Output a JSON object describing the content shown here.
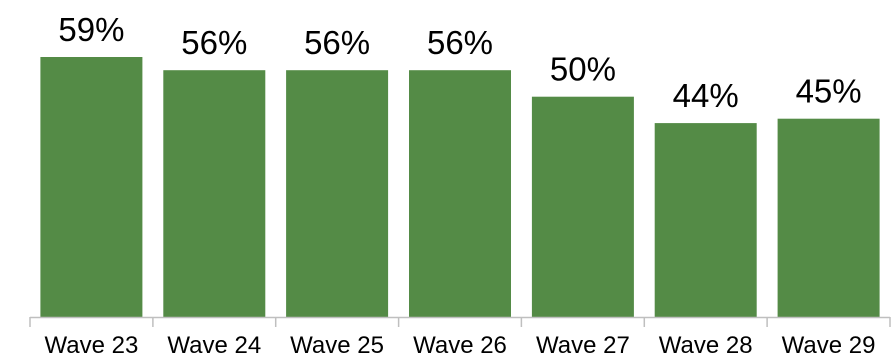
{
  "chart_data": {
    "type": "bar",
    "title": "",
    "xlabel": "",
    "ylabel": "",
    "categories": [
      "Wave 23",
      "Wave 24",
      "Wave 25",
      "Wave 26",
      "Wave 27",
      "Wave 28",
      "Wave 29"
    ],
    "values": [
      59,
      56,
      56,
      56,
      50,
      44,
      45
    ],
    "data_labels": [
      "59%",
      "56%",
      "56%",
      "56%",
      "50%",
      "44%",
      "45%"
    ],
    "ylim": [
      0,
      59
    ],
    "grid": false,
    "legend": "none",
    "bar_color": "#548b46",
    "axis_color": "#bfbfbf"
  }
}
